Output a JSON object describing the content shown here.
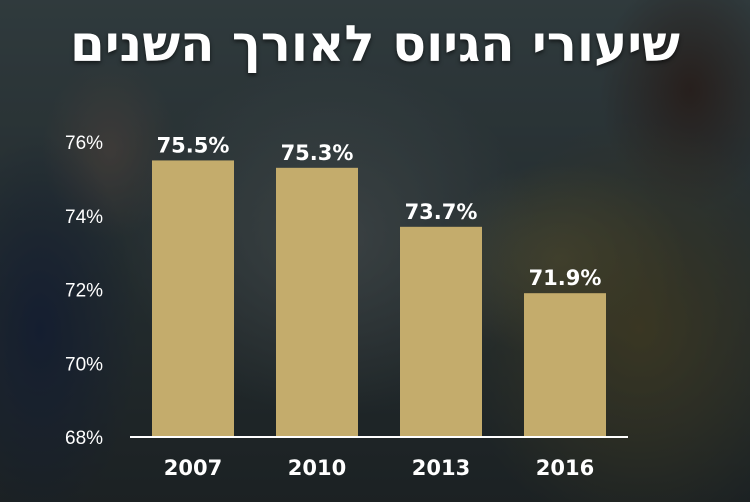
{
  "chart_data": {
    "type": "bar",
    "title": "שיעורי הגיוס לאורך השנים",
    "categories": [
      "2007",
      "2010",
      "2013",
      "2016"
    ],
    "values": [
      75.5,
      75.3,
      73.7,
      71.9
    ],
    "value_labels": [
      "75.5%",
      "75.3%",
      "73.7%",
      "71.9%"
    ],
    "yticks": [
      68,
      70,
      72,
      74,
      76
    ],
    "ytick_labels": [
      "68%",
      "70%",
      "72%",
      "74%",
      "76%"
    ],
    "ylim": [
      68,
      76
    ],
    "xlabel": "",
    "ylabel": "",
    "grid": false,
    "bar_color": "#c4ac6c",
    "text_color": "#ffffff"
  }
}
